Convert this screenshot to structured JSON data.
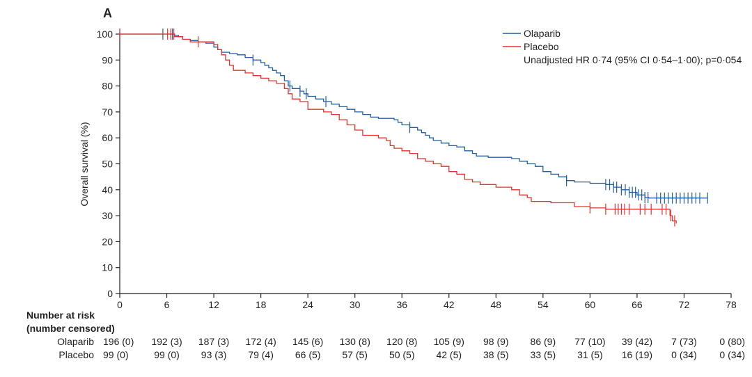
{
  "panel_label": "A",
  "colors": {
    "olaparib": "#1f5fa8",
    "placebo": "#e4312b",
    "axis": "#231f20"
  },
  "chart_data": {
    "type": "line",
    "subtype": "kaplan-meier",
    "title": "",
    "xlabel": "",
    "ylabel": "Overall survival (%)",
    "xlim": [
      0,
      78
    ],
    "ylim": [
      0,
      100
    ],
    "x_ticks": [
      0,
      6,
      12,
      18,
      24,
      30,
      36,
      42,
      48,
      54,
      60,
      66,
      72,
      78
    ],
    "y_ticks": [
      0,
      10,
      20,
      30,
      40,
      50,
      60,
      70,
      80,
      90,
      100
    ],
    "grid": false,
    "legend_position": "top-right",
    "annotation": "Unadjusted HR 0·74 (95% CI 0·54–1·00); p=0·054",
    "series": [
      {
        "name": "Olaparib",
        "color": "#1f5fa8",
        "points": [
          [
            0,
            100
          ],
          [
            7,
            99.5
          ],
          [
            7.5,
            99
          ],
          [
            8,
            98
          ],
          [
            9,
            97.5
          ],
          [
            10,
            97
          ],
          [
            11,
            96.5
          ],
          [
            12,
            95
          ],
          [
            12.5,
            94
          ],
          [
            13,
            93
          ],
          [
            14,
            92.5
          ],
          [
            15,
            92
          ],
          [
            16,
            91
          ],
          [
            17,
            90
          ],
          [
            18,
            89
          ],
          [
            18.5,
            88
          ],
          [
            19,
            87
          ],
          [
            19.5,
            86
          ],
          [
            20,
            85
          ],
          [
            20.5,
            84
          ],
          [
            21,
            82
          ],
          [
            21.5,
            80
          ],
          [
            22,
            79
          ],
          [
            23,
            78
          ],
          [
            23.5,
            77
          ],
          [
            24,
            76
          ],
          [
            25,
            75
          ],
          [
            26,
            74
          ],
          [
            27,
            73
          ],
          [
            28,
            72
          ],
          [
            29,
            71
          ],
          [
            30,
            70
          ],
          [
            31,
            69
          ],
          [
            32,
            68
          ],
          [
            33,
            67.5
          ],
          [
            35,
            67
          ],
          [
            35.5,
            66
          ],
          [
            36,
            65
          ],
          [
            37,
            64
          ],
          [
            38,
            63
          ],
          [
            38.5,
            62
          ],
          [
            39,
            61
          ],
          [
            39.5,
            60
          ],
          [
            40,
            59
          ],
          [
            41,
            58
          ],
          [
            42,
            57
          ],
          [
            43,
            56.5
          ],
          [
            44,
            55
          ],
          [
            45,
            54
          ],
          [
            45.5,
            53
          ],
          [
            47,
            52.5
          ],
          [
            50,
            52
          ],
          [
            51,
            51
          ],
          [
            52,
            50
          ],
          [
            53,
            49
          ],
          [
            54,
            47
          ],
          [
            55,
            46
          ],
          [
            56,
            45
          ],
          [
            57,
            43.5
          ],
          [
            58,
            43
          ],
          [
            60,
            42.5
          ],
          [
            62,
            42
          ],
          [
            63,
            41
          ],
          [
            64,
            40
          ],
          [
            65,
            39
          ],
          [
            66,
            38
          ],
          [
            67,
            37
          ],
          [
            67.5,
            36.8
          ],
          [
            75,
            36.8
          ]
        ],
        "censor_x": [
          0,
          5.5,
          6.7,
          17,
          21.7,
          23,
          23.8,
          26.3,
          37,
          57,
          62,
          62.5,
          63,
          63.4,
          64,
          64.5,
          65,
          65.4,
          65.8,
          66.2,
          66.6,
          67,
          67.4,
          68.5,
          69,
          69.5,
          70,
          70.5,
          71,
          71.5,
          72,
          72.5,
          73,
          73.5,
          74,
          75
        ]
      },
      {
        "name": "Placebo",
        "color": "#e4312b",
        "points": [
          [
            0,
            100
          ],
          [
            7,
            99
          ],
          [
            8,
            98
          ],
          [
            9,
            97
          ],
          [
            12,
            96
          ],
          [
            12.5,
            94
          ],
          [
            13,
            92
          ],
          [
            13.5,
            90
          ],
          [
            14,
            88
          ],
          [
            14.5,
            86
          ],
          [
            16,
            85
          ],
          [
            17,
            84
          ],
          [
            18,
            83
          ],
          [
            19,
            82
          ],
          [
            20,
            81
          ],
          [
            21,
            79
          ],
          [
            21.5,
            77
          ],
          [
            22,
            75
          ],
          [
            23,
            74
          ],
          [
            24,
            71
          ],
          [
            26,
            70
          ],
          [
            27,
            69
          ],
          [
            28,
            67
          ],
          [
            29,
            65
          ],
          [
            30,
            63
          ],
          [
            31,
            61
          ],
          [
            33,
            60
          ],
          [
            34,
            59
          ],
          [
            34.5,
            57
          ],
          [
            35,
            56
          ],
          [
            36,
            55
          ],
          [
            37,
            54
          ],
          [
            38,
            52
          ],
          [
            39,
            51
          ],
          [
            40,
            50
          ],
          [
            41,
            49
          ],
          [
            42,
            47
          ],
          [
            43,
            46
          ],
          [
            44,
            44
          ],
          [
            45,
            43
          ],
          [
            46,
            42
          ],
          [
            48,
            41
          ],
          [
            50,
            40
          ],
          [
            51,
            38
          ],
          [
            52,
            37
          ],
          [
            52.5,
            35.5
          ],
          [
            55,
            35
          ],
          [
            58,
            33.5
          ],
          [
            60,
            33
          ],
          [
            62,
            32.5
          ],
          [
            70,
            32.5
          ],
          [
            70.2,
            30
          ],
          [
            70.5,
            28
          ],
          [
            71,
            27
          ]
        ],
        "censor_x": [
          0,
          6.1,
          6.5,
          6.9,
          10,
          60,
          62,
          63.2,
          63.6,
          64,
          64.4,
          65,
          66.4,
          67,
          67.8,
          69.2,
          69.7,
          70.3,
          70.8
        ]
      }
    ]
  },
  "risk_table": {
    "heading_line1": "Number at risk",
    "heading_line2": "(number censored)",
    "rows": [
      {
        "name": "Olaparib",
        "cells": [
          "196 (0)",
          "192 (3)",
          "187 (3)",
          "172 (4)",
          "145 (6)",
          "130 (8)",
          "120 (8)",
          "105 (9)",
          "98 (9)",
          "86 (9)",
          "77 (10)",
          "39 (42)",
          "7 (73)",
          "0 (80)"
        ]
      },
      {
        "name": "Placebo",
        "cells": [
          "99 (0)",
          "99 (0)",
          "93 (3)",
          "79 (4)",
          "66 (5)",
          "57 (5)",
          "50 (5)",
          "42 (5)",
          "38 (5)",
          "33 (5)",
          "31 (5)",
          "16 (19)",
          "0 (34)",
          "0 (34)"
        ]
      }
    ]
  }
}
